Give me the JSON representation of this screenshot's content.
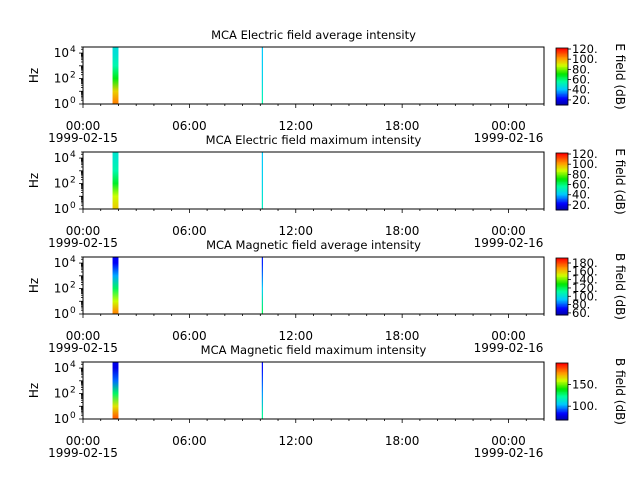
{
  "chart_data": [
    {
      "type": "heatmap",
      "title": "MCA  Electric field average intensity",
      "ylabel": "Hz",
      "y_scale": "log",
      "ylim": [
        1,
        30000
      ],
      "y_ticks": [
        {
          "base": "10",
          "exp": "0"
        },
        {
          "base": "10",
          "exp": "2"
        },
        {
          "base": "10",
          "exp": "4"
        }
      ],
      "x_range": [
        "1999-02-15T00:00",
        "1999-02-16T02:00"
      ],
      "x_ticks": [
        {
          "time": "00:00",
          "date": "1999-02-15"
        },
        {
          "time": "06:00",
          "date": ""
        },
        {
          "time": "12:00",
          "date": ""
        },
        {
          "time": "18:00",
          "date": ""
        },
        {
          "time": "00:00",
          "date": "1999-02-16"
        }
      ],
      "colorbar": {
        "label": "E field (dB)",
        "range": [
          10,
          122
        ],
        "ticks": [
          "20.",
          "40.",
          "60.",
          "80.",
          "100.",
          "120."
        ],
        "colormap": "rainbow"
      },
      "events": [
        {
          "start": "1999-02-15T01:40",
          "end": "1999-02-15T02:00",
          "freq_range": [
            1,
            30000
          ],
          "intensity_profile_db": [
            {
              "hz": 1.5,
              "db": 105
            },
            {
              "hz": 10,
              "db": 95
            },
            {
              "hz": 100,
              "db": 70
            },
            {
              "hz": 1000,
              "db": 55
            },
            {
              "hz": 10000,
              "db": 48
            }
          ]
        },
        {
          "start": "1999-02-15T10:05",
          "end": "1999-02-15T10:08",
          "freq_range": [
            1,
            30000
          ],
          "intensity_profile_db": [
            {
              "hz": 1.5,
              "db": 55
            },
            {
              "hz": 100,
              "db": 45
            },
            {
              "hz": 10000,
              "db": 42
            }
          ]
        }
      ]
    },
    {
      "type": "heatmap",
      "title": "MCA  Electric field maximum intensity",
      "ylabel": "Hz",
      "y_scale": "log",
      "ylim": [
        1,
        30000
      ],
      "y_ticks": [
        {
          "base": "10",
          "exp": "0"
        },
        {
          "base": "10",
          "exp": "2"
        },
        {
          "base": "10",
          "exp": "4"
        }
      ],
      "x_range": [
        "1999-02-15T00:00",
        "1999-02-16T02:00"
      ],
      "x_ticks": [
        {
          "time": "00:00",
          "date": "1999-02-15"
        },
        {
          "time": "06:00",
          "date": ""
        },
        {
          "time": "12:00",
          "date": ""
        },
        {
          "time": "18:00",
          "date": ""
        },
        {
          "time": "00:00",
          "date": "1999-02-16"
        }
      ],
      "colorbar": {
        "label": "E field (dB)",
        "range": [
          10,
          122
        ],
        "ticks": [
          "20.",
          "40.",
          "60.",
          "80.",
          "100.",
          "120."
        ],
        "colormap": "rainbow"
      },
      "events": [
        {
          "start": "1999-02-15T01:40",
          "end": "1999-02-15T02:00",
          "freq_range": [
            1,
            30000
          ],
          "intensity_profile_db": [
            {
              "hz": 1.5,
              "db": 95
            },
            {
              "hz": 10,
              "db": 88
            },
            {
              "hz": 100,
              "db": 68
            },
            {
              "hz": 1000,
              "db": 55
            },
            {
              "hz": 10000,
              "db": 50
            }
          ]
        },
        {
          "start": "1999-02-15T10:05",
          "end": "1999-02-15T10:08",
          "freq_range": [
            1,
            30000
          ],
          "intensity_profile_db": [
            {
              "hz": 1.5,
              "db": 52
            },
            {
              "hz": 100,
              "db": 45
            },
            {
              "hz": 10000,
              "db": 42
            }
          ]
        }
      ]
    },
    {
      "type": "heatmap",
      "title": "MCA  Magnetic field average intensity",
      "ylabel": "Hz",
      "y_scale": "log",
      "ylim": [
        1,
        30000
      ],
      "y_ticks": [
        {
          "base": "10",
          "exp": "0"
        },
        {
          "base": "10",
          "exp": "2"
        },
        {
          "base": "10",
          "exp": "4"
        }
      ],
      "x_range": [
        "1999-02-15T00:00",
        "1999-02-16T02:00"
      ],
      "x_ticks": [
        {
          "time": "00:00",
          "date": "1999-02-15"
        },
        {
          "time": "06:00",
          "date": ""
        },
        {
          "time": "12:00",
          "date": ""
        },
        {
          "time": "18:00",
          "date": ""
        },
        {
          "time": "00:00",
          "date": "1999-02-16"
        }
      ],
      "colorbar": {
        "label": "B field (dB)",
        "range": [
          55,
          192
        ],
        "ticks": [
          "60.",
          "80.",
          "100.",
          "120.",
          "140.",
          "160.",
          "180."
        ],
        "colormap": "rainbow"
      },
      "events": [
        {
          "start": "1999-02-15T01:40",
          "end": "1999-02-15T02:00",
          "freq_range": [
            1,
            30000
          ],
          "intensity_profile_db": [
            {
              "hz": 1.5,
              "db": 170
            },
            {
              "hz": 10,
              "db": 150
            },
            {
              "hz": 100,
              "db": 120
            },
            {
              "hz": 1000,
              "db": 90
            },
            {
              "hz": 10000,
              "db": 70
            }
          ]
        },
        {
          "start": "1999-02-15T10:05",
          "end": "1999-02-15T10:08",
          "freq_range": [
            1,
            30000
          ],
          "intensity_profile_db": [
            {
              "hz": 1.5,
              "db": 120
            },
            {
              "hz": 100,
              "db": 95
            },
            {
              "hz": 10000,
              "db": 75
            }
          ]
        }
      ]
    },
    {
      "type": "heatmap",
      "title": "MCA  Magnetic field maximum intensity",
      "ylabel": "Hz",
      "y_scale": "log",
      "ylim": [
        1,
        30000
      ],
      "y_ticks": [
        {
          "base": "10",
          "exp": "0"
        },
        {
          "base": "10",
          "exp": "2"
        },
        {
          "base": "10",
          "exp": "4"
        }
      ],
      "x_range": [
        "1999-02-15T00:00",
        "1999-02-16T02:00"
      ],
      "x_ticks": [
        {
          "time": "00:00",
          "date": "1999-02-15"
        },
        {
          "time": "06:00",
          "date": ""
        },
        {
          "time": "12:00",
          "date": ""
        },
        {
          "time": "18:00",
          "date": ""
        },
        {
          "time": "00:00",
          "date": "1999-02-16"
        }
      ],
      "colorbar": {
        "label": "B field (dB)",
        "range": [
          68,
          200
        ],
        "ticks": [
          "100.",
          "150."
        ],
        "colormap": "rainbow"
      },
      "events": [
        {
          "start": "1999-02-15T01:40",
          "end": "1999-02-15T02:00",
          "freq_range": [
            1,
            30000
          ],
          "intensity_profile_db": [
            {
              "hz": 1.5,
              "db": 185
            },
            {
              "hz": 10,
              "db": 165
            },
            {
              "hz": 100,
              "db": 130
            },
            {
              "hz": 1000,
              "db": 95
            },
            {
              "hz": 10000,
              "db": 80
            }
          ]
        },
        {
          "start": "1999-02-15T10:05",
          "end": "1999-02-15T10:08",
          "freq_range": [
            1,
            30000
          ],
          "intensity_profile_db": [
            {
              "hz": 1.5,
              "db": 125
            },
            {
              "hz": 100,
              "db": 100
            },
            {
              "hz": 10000,
              "db": 85
            }
          ]
        }
      ]
    }
  ]
}
